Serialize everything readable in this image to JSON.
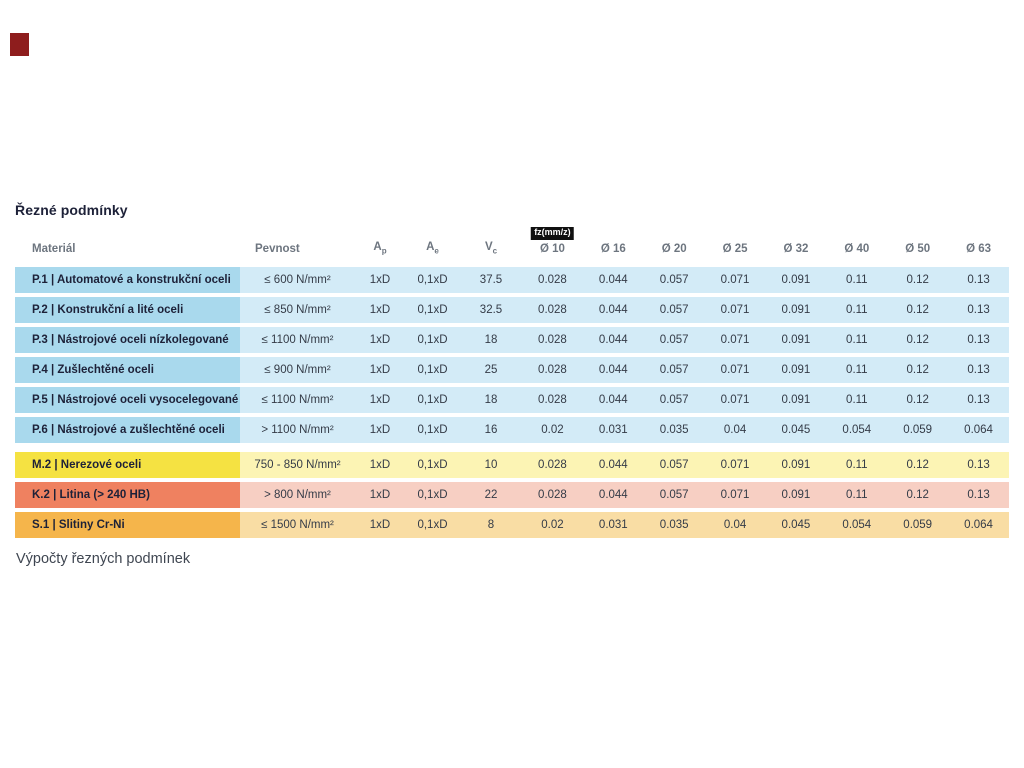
{
  "page": {
    "section_title": "Řezné podmínky",
    "footer_text": "Výpočty řezných podmínek"
  },
  "marker": {
    "color": "#8e1d1d"
  },
  "colors": {
    "group_p_dark": "#a9d9ed",
    "group_p_light": "#d3ebf7",
    "group_m_dark": "#f5e242",
    "group_m_light": "#fcf4b4",
    "group_k_dark": "#ef8160",
    "group_k_light": "#f7cfc3",
    "group_s_dark": "#f5b54b",
    "group_s_light": "#f9dda4",
    "badge_bg": "#101010",
    "badge_text": "#ffffff",
    "header_text": "#6d757f",
    "material_text": "#1d2138"
  },
  "table": {
    "headers": {
      "material": "Materiál",
      "pevnost": "Pevnost",
      "ap_base": "A",
      "ap_sub": "p",
      "ae_base": "A",
      "ae_sub": "e",
      "vc_base": "V",
      "vc_sub": "c",
      "fz_badge": "fz(mm/z)",
      "diameters": [
        "Ø 10",
        "Ø 16",
        "Ø 20",
        "Ø 25",
        "Ø 32",
        "Ø 40",
        "Ø 50",
        "Ø 63"
      ]
    },
    "rows": [
      {
        "group": "g-blue",
        "material": "P.1 | Automatové a konstrukční oceli",
        "pevnost": "≤ 600 N/mm²",
        "ap": "1xD",
        "ae": "0,1xD",
        "vc": "37.5",
        "fz": [
          "0.028",
          "0.044",
          "0.057",
          "0.071",
          "0.091",
          "0.11",
          "0.12",
          "0.13"
        ]
      },
      {
        "group": "g-blue",
        "material": "P.2 | Konstrukční a lité oceli",
        "pevnost": "≤ 850 N/mm²",
        "ap": "1xD",
        "ae": "0,1xD",
        "vc": "32.5",
        "fz": [
          "0.028",
          "0.044",
          "0.057",
          "0.071",
          "0.091",
          "0.11",
          "0.12",
          "0.13"
        ]
      },
      {
        "group": "g-blue",
        "material": "P.3 | Nástrojové oceli nízkolegované",
        "pevnost": "≤ 1100 N/mm²",
        "ap": "1xD",
        "ae": "0,1xD",
        "vc": "18",
        "fz": [
          "0.028",
          "0.044",
          "0.057",
          "0.071",
          "0.091",
          "0.11",
          "0.12",
          "0.13"
        ]
      },
      {
        "group": "g-blue",
        "material": "P.4 | Zušlechtěné oceli",
        "pevnost": "≤ 900 N/mm²",
        "ap": "1xD",
        "ae": "0,1xD",
        "vc": "25",
        "fz": [
          "0.028",
          "0.044",
          "0.057",
          "0.071",
          "0.091",
          "0.11",
          "0.12",
          "0.13"
        ]
      },
      {
        "group": "g-blue",
        "material": "P.5 | Nástrojové oceli vysocelegované",
        "pevnost": "≤ 1100 N/mm²",
        "ap": "1xD",
        "ae": "0,1xD",
        "vc": "18",
        "fz": [
          "0.028",
          "0.044",
          "0.057",
          "0.071",
          "0.091",
          "0.11",
          "0.12",
          "0.13"
        ]
      },
      {
        "group": "g-blue",
        "material": "P.6 | Nástrojové a zušlechtěné oceli",
        "pevnost": "> 1100 N/mm²",
        "ap": "1xD",
        "ae": "0,1xD",
        "vc": "16",
        "fz": [
          "0.02",
          "0.031",
          "0.035",
          "0.04",
          "0.045",
          "0.054",
          "0.059",
          "0.064"
        ]
      },
      {
        "group": "g-yellow",
        "material": "M.2 | Nerezové oceli",
        "pevnost": "750 - 850 N/mm²",
        "ap": "1xD",
        "ae": "0,1xD",
        "vc": "10",
        "fz": [
          "0.028",
          "0.044",
          "0.057",
          "0.071",
          "0.091",
          "0.11",
          "0.12",
          "0.13"
        ],
        "gap_before": true
      },
      {
        "group": "g-red",
        "material": "K.2 | Litina (> 240 HB)",
        "pevnost": "> 800 N/mm²",
        "ap": "1xD",
        "ae": "0,1xD",
        "vc": "22",
        "fz": [
          "0.028",
          "0.044",
          "0.057",
          "0.071",
          "0.091",
          "0.11",
          "0.12",
          "0.13"
        ]
      },
      {
        "group": "g-orange",
        "material": "S.1 | Slitiny Cr-Ni",
        "pevnost": "≤ 1500 N/mm²",
        "ap": "1xD",
        "ae": "0,1xD",
        "vc": "8",
        "fz": [
          "0.02",
          "0.031",
          "0.035",
          "0.04",
          "0.045",
          "0.054",
          "0.059",
          "0.064"
        ]
      }
    ]
  }
}
